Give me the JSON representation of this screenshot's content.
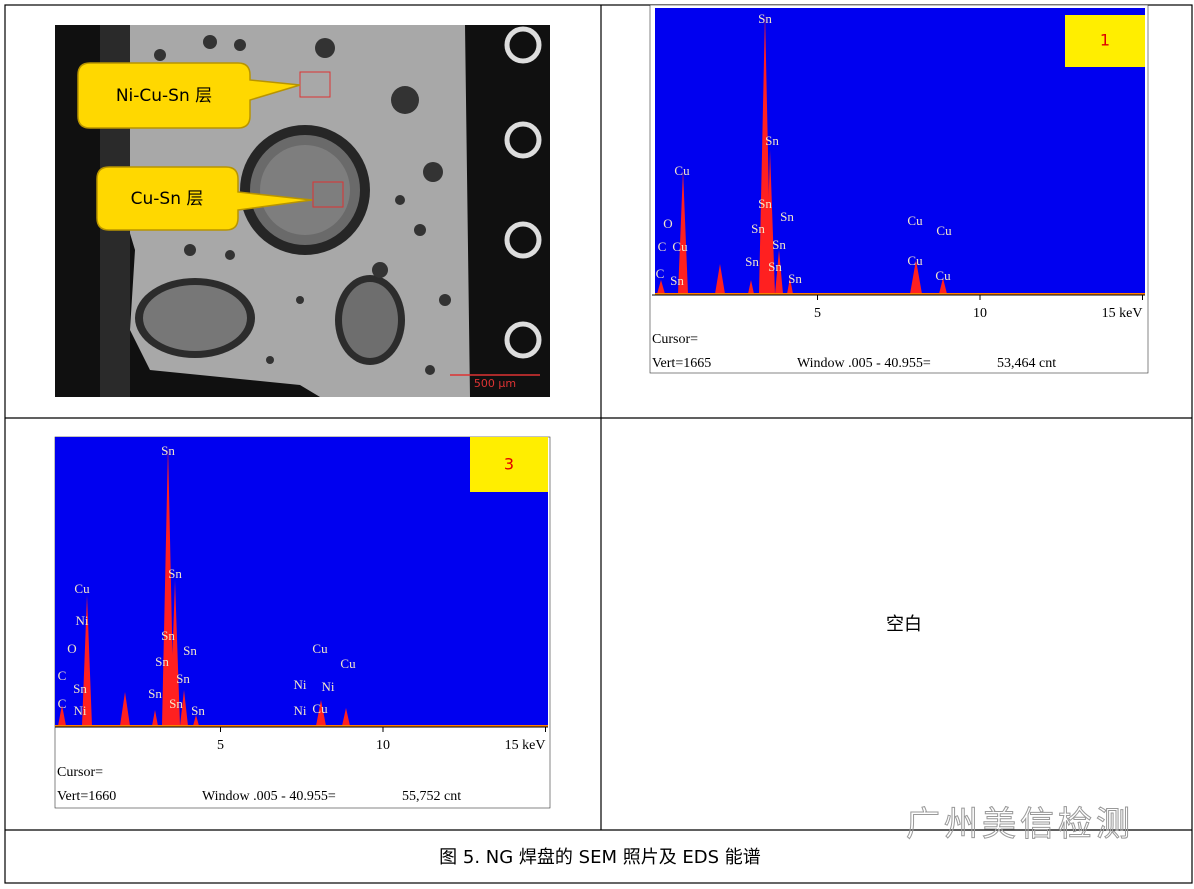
{
  "sem": {
    "callouts": [
      "Ni-Cu-Sn 层",
      "Cu-Sn 层"
    ],
    "scale_bar": "500 μm"
  },
  "spectra": [
    {
      "label": "1",
      "peak_labels": [
        "Sn",
        "Sn",
        "Cu",
        "O",
        "C",
        "Cu",
        "Sn",
        "Sn",
        "Sn",
        "Sn",
        "Cu",
        "Cu",
        "C",
        "Sn",
        "Sn",
        "Sn",
        "Sn",
        "Cu",
        "Cu"
      ],
      "ticks": [
        5,
        10,
        {
          "value": 15,
          "label": "15 keV"
        }
      ],
      "cursor": "Cursor=",
      "vert": "Vert=1665",
      "window": "Window .005 - 40.955=",
      "counts": "53,464 cnt"
    },
    {
      "label": "3",
      "peak_labels": [
        "Sn",
        "Sn",
        "Cu",
        "Ni",
        "O",
        "Sn",
        "Sn",
        "Sn",
        "Sn",
        "C",
        "Sn",
        "Sn",
        "C",
        "Ni",
        "Sn",
        "Sn",
        "Cu",
        "Cu",
        "Ni",
        "Ni",
        "Ni",
        "Cu"
      ],
      "ticks": [
        5,
        10,
        {
          "value": 15,
          "label": "15 keV"
        }
      ],
      "cursor": "Cursor=",
      "vert": "Vert=1660",
      "window": "Window .005 - 40.955=",
      "counts": "55,752 cnt"
    }
  ],
  "blank": "空白",
  "caption": "图 5. NG 焊盘的 SEM 照片及 EDS 能谱",
  "watermark": "广州美信检测"
}
